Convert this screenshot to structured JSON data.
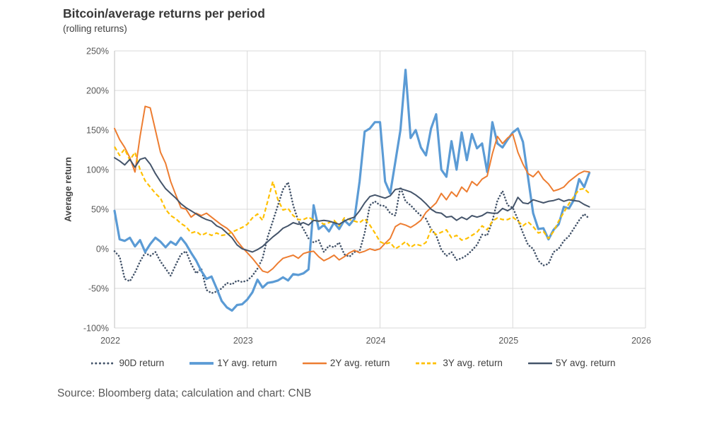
{
  "title": "Bitcoin/average returns per period",
  "subtitle": "(rolling returns)",
  "source_note": "Source: Bloomberg data; calculation and chart: CNB",
  "colors": {
    "grid": "#D9D9D9",
    "axis": "#BFBFBF",
    "tick_text": "#595959",
    "blue": "#5B9BD5",
    "orange": "#ED7D31",
    "yellow": "#FFC000",
    "navy": "#44546A"
  },
  "chart_data": {
    "type": "line",
    "title": "Bitcoin/average returns per period",
    "subtitle": "(rolling returns)",
    "xlabel": "",
    "ylabel": "Average return",
    "ylim": [
      -100,
      250
    ],
    "y_ticks_percent": [
      250,
      200,
      150,
      100,
      50,
      0,
      -50,
      -100
    ],
    "x_ticks_years": [
      2022,
      2023,
      2024,
      2025,
      2026
    ],
    "x_start_year": 2022,
    "x_end_of_data_year": 2025.6,
    "points_per_year": 26,
    "grid": true,
    "legend_position": "bottom",
    "series": [
      {
        "name": "90D return",
        "color": "#44546A",
        "style": "dotted",
        "values": [
          -3,
          -10,
          -38,
          -41,
          -30,
          -16,
          -5,
          -9,
          -4,
          -16,
          -25,
          -34,
          -20,
          -7,
          -3,
          -19,
          -31,
          -25,
          -52,
          -56,
          -54,
          -50,
          -43,
          -45,
          -40,
          -42,
          -40,
          -34,
          -25,
          -12,
          15,
          35,
          55,
          75,
          84,
          55,
          35,
          25,
          13,
          8,
          11,
          -4,
          4,
          2,
          8,
          -7,
          -10,
          -4,
          -3,
          20,
          55,
          60,
          55,
          54,
          45,
          42,
          78,
          60,
          55,
          48,
          42,
          38,
          25,
          17,
          -1,
          -9,
          -4,
          -14,
          -12,
          -8,
          -2,
          5,
          18,
          17,
          35,
          61,
          73,
          55,
          52,
          37,
          20,
          5,
          0,
          -15,
          -21,
          -19,
          -4,
          0,
          10,
          16,
          26,
          36,
          44,
          38
        ]
      },
      {
        "name": "1Y avg. return",
        "color": "#5B9BD5",
        "style": "solid-thick",
        "values": [
          48,
          12,
          10,
          14,
          3,
          11,
          -4,
          6,
          14,
          9,
          2,
          9,
          5,
          14,
          6,
          -5,
          -15,
          -28,
          -38,
          -35,
          -50,
          -66,
          -74,
          -78,
          -71,
          -70,
          -64,
          -55,
          -39,
          -49,
          -43,
          -42,
          -40,
          -36,
          -40,
          -32,
          -33,
          -31,
          -26,
          55,
          25,
          30,
          22,
          33,
          25,
          36,
          30,
          38,
          85,
          148,
          152,
          160,
          160,
          85,
          70,
          110,
          150,
          226,
          140,
          150,
          128,
          118,
          152,
          170,
          100,
          91,
          136,
          100,
          147,
          112,
          145,
          127,
          133,
          97,
          160,
          133,
          128,
          138,
          147,
          152,
          135,
          90,
          45,
          25,
          26,
          12,
          24,
          31,
          53,
          51,
          62,
          88,
          78,
          96
        ]
      },
      {
        "name": "2Y avg. return",
        "color": "#ED7D31",
        "style": "solid",
        "values": [
          152,
          138,
          128,
          115,
          97,
          142,
          180,
          178,
          150,
          122,
          108,
          85,
          68,
          52,
          50,
          40,
          45,
          42,
          45,
          40,
          35,
          30,
          26,
          20,
          10,
          2,
          -5,
          -12,
          -20,
          -28,
          -30,
          -25,
          -18,
          -12,
          -10,
          -8,
          -12,
          -6,
          -4,
          -3,
          -10,
          -15,
          -12,
          -8,
          -14,
          -10,
          -5,
          -2,
          -5,
          -3,
          0,
          -2,
          0,
          7,
          13,
          28,
          32,
          30,
          27,
          31,
          36,
          46,
          52,
          58,
          70,
          62,
          72,
          66,
          78,
          72,
          85,
          80,
          88,
          92,
          120,
          142,
          133,
          140,
          145,
          122,
          107,
          95,
          91,
          98,
          88,
          82,
          73,
          75,
          78,
          85,
          90,
          95,
          98,
          97
        ]
      },
      {
        "name": "3Y avg. return",
        "color": "#FFC000",
        "style": "dashed",
        "values": [
          129,
          118,
          126,
          112,
          122,
          100,
          86,
          78,
          70,
          64,
          50,
          42,
          38,
          32,
          28,
          20,
          22,
          17,
          20,
          17,
          20,
          17,
          18,
          21,
          24,
          27,
          31,
          39,
          44,
          36,
          60,
          85,
          62,
          49,
          51,
          42,
          37,
          37,
          40,
          36,
          35,
          31,
          33,
          36,
          29,
          39,
          37,
          35,
          33,
          38,
          30,
          20,
          9,
          6,
          8,
          0,
          4,
          9,
          2,
          6,
          4,
          8,
          24,
          18,
          21,
          24,
          14,
          17,
          11,
          13,
          17,
          21,
          29,
          24,
          35,
          39,
          37,
          37,
          40,
          35,
          29,
          34,
          28,
          20,
          22,
          13,
          22,
          35,
          46,
          57,
          66,
          75,
          76,
          70
        ]
      },
      {
        "name": "5Y avg. return",
        "color": "#44546A",
        "style": "solid",
        "values": [
          115,
          111,
          106,
          113,
          103,
          113,
          115,
          107,
          95,
          85,
          76,
          70,
          64,
          57,
          52,
          48,
          44,
          40,
          37,
          35,
          29,
          26,
          20,
          14,
          5,
          0,
          -2,
          -4,
          -1,
          3,
          9,
          15,
          20,
          26,
          29,
          33,
          31,
          33,
          30,
          36,
          35,
          36,
          35,
          33,
          31,
          35,
          38,
          40,
          48,
          58,
          66,
          68,
          66,
          64,
          67,
          75,
          76,
          74,
          72,
          68,
          63,
          57,
          50,
          46,
          45,
          40,
          41,
          36,
          40,
          37,
          42,
          40,
          42,
          46,
          45,
          45,
          51,
          48,
          52,
          65,
          58,
          57,
          62,
          60,
          58,
          60,
          61,
          63,
          60,
          62,
          61,
          60,
          56,
          53
        ]
      }
    ]
  }
}
